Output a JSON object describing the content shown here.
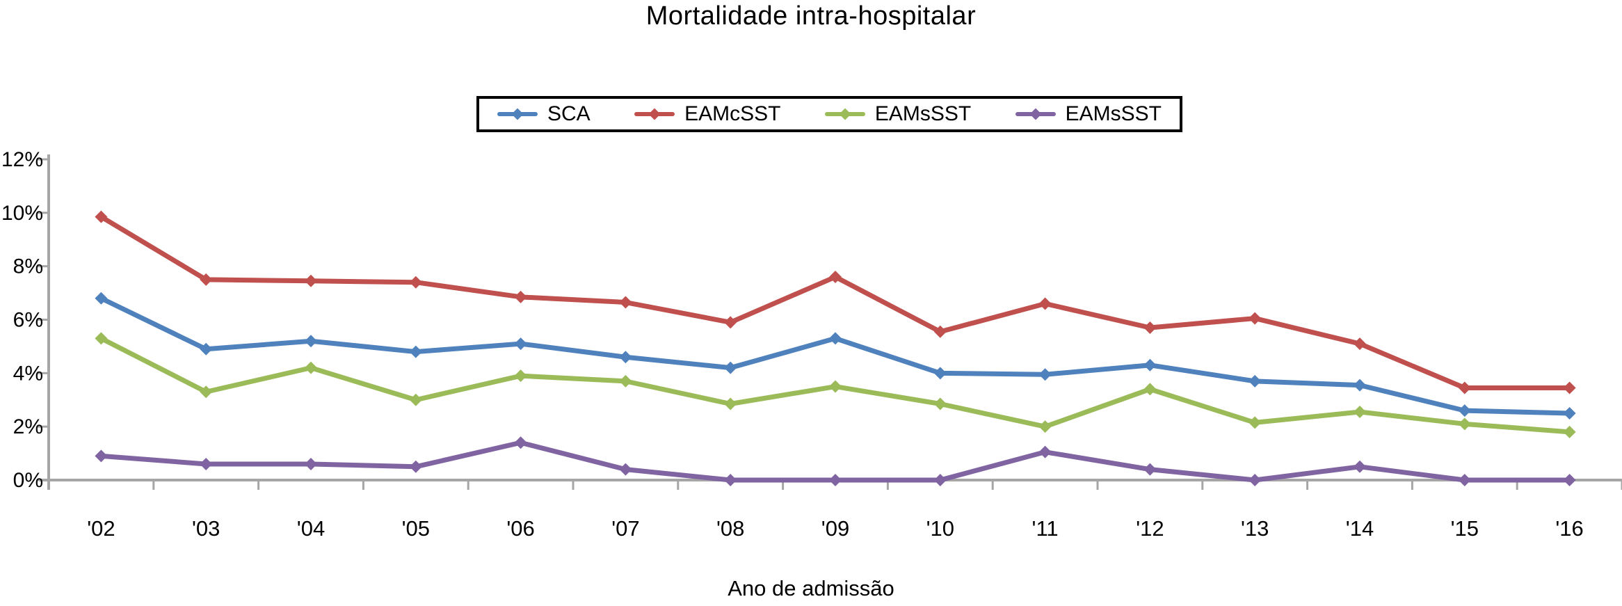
{
  "chart_data": {
    "type": "line",
    "title": "Mortalidade intra-hospitalar",
    "xlabel": "Ano de admissão",
    "ylabel": "",
    "categories": [
      "'02",
      "'03",
      "'04",
      "'05",
      "'06",
      "'07",
      "'08",
      "'09",
      "'10",
      "'11",
      "'12",
      "'13",
      "'14",
      "'15",
      "'16"
    ],
    "ylim": [
      0,
      12
    ],
    "y_ticks": [
      {
        "value": 0,
        "label": "0%"
      },
      {
        "value": 2,
        "label": "2%"
      },
      {
        "value": 4,
        "label": "4%"
      },
      {
        "value": 6,
        "label": "6%"
      },
      {
        "value": 8,
        "label": "8%"
      },
      {
        "value": 10,
        "label": "10%"
      },
      {
        "value": 12,
        "label": "12%"
      }
    ],
    "grid": false,
    "legend_position": "top-center",
    "axis_color": "#a6a6a6",
    "text_color": "#000000",
    "marker_shape": "diamond",
    "series": [
      {
        "name": "SCA",
        "color": "#4f81bd",
        "values": [
          6.8,
          4.9,
          5.2,
          4.8,
          5.1,
          4.6,
          4.2,
          5.3,
          4.0,
          3.95,
          4.3,
          3.7,
          3.55,
          2.6,
          2.5
        ]
      },
      {
        "name": "EAMcSST",
        "color": "#c0504d",
        "values": [
          9.85,
          7.5,
          7.45,
          7.4,
          6.85,
          6.65,
          5.9,
          7.6,
          5.55,
          6.6,
          5.7,
          6.05,
          5.1,
          3.45,
          3.45
        ]
      },
      {
        "name": "EAMsSST",
        "color": "#9bbb59",
        "values": [
          5.3,
          3.3,
          4.2,
          3.0,
          3.9,
          3.7,
          2.85,
          3.5,
          2.85,
          2.0,
          3.4,
          2.15,
          2.55,
          2.1,
          1.8
        ]
      },
      {
        "name": "EAMsSST",
        "color": "#8064a2",
        "values": [
          0.9,
          0.6,
          0.6,
          0.5,
          1.4,
          0.4,
          0.0,
          0.0,
          0.0,
          1.05,
          0.4,
          0.0,
          0.5,
          0.0,
          0.0
        ]
      }
    ]
  }
}
